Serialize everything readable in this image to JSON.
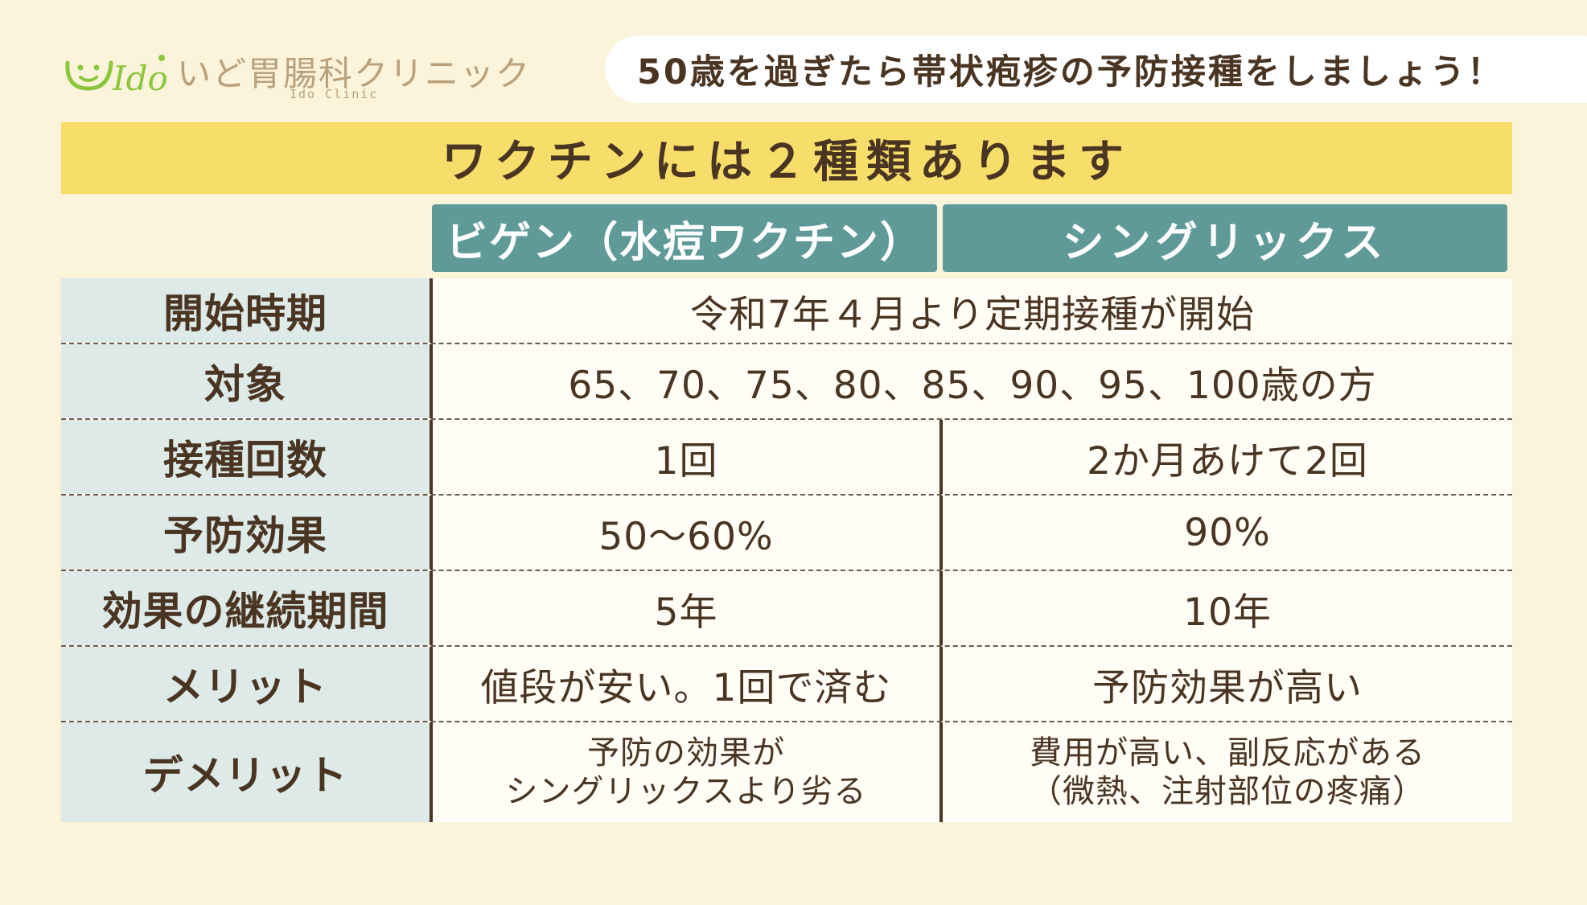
{
  "clinic": {
    "name": "いど胃腸科クリニック",
    "subname": "Ido Clinic",
    "logo_text": "Ido"
  },
  "headline": "50歳を過ぎたら帯状疱疹の予防接種をしましょう！",
  "banner": "ワクチンには２種類あります",
  "columns": [
    "ビゲン（水痘ワクチン）",
    "シングリックス"
  ],
  "rows": [
    {
      "label": "開始時期",
      "merged": "令和7年４月より定期接種が開始"
    },
    {
      "label": "対象",
      "merged": "65、70、75、80、85、90、95、100歳の方"
    },
    {
      "label": "接種回数",
      "a": "1回",
      "b": "2か月あけて2回"
    },
    {
      "label": "予防効果",
      "a": "50〜60%",
      "b": "90%"
    },
    {
      "label": "効果の継続期間",
      "a": "5年",
      "b": "10年"
    },
    {
      "label": "メリット",
      "a": "値段が安い。1回で済む",
      "b": "予防効果が高い"
    },
    {
      "label": "デメリット",
      "a_lines": [
        "予防の効果が",
        "シングリックスより劣る"
      ],
      "b_lines": [
        "費用が高い、副反応がある",
        "（微熱、注射部位の疼痛）"
      ]
    }
  ],
  "colors": {
    "background": "#fbf3da",
    "banner": "#f7de6a",
    "column_header": "#5f9a99",
    "row_label": "#ddeae8",
    "text": "#4a3422",
    "logo_green": "#8cc63f"
  }
}
